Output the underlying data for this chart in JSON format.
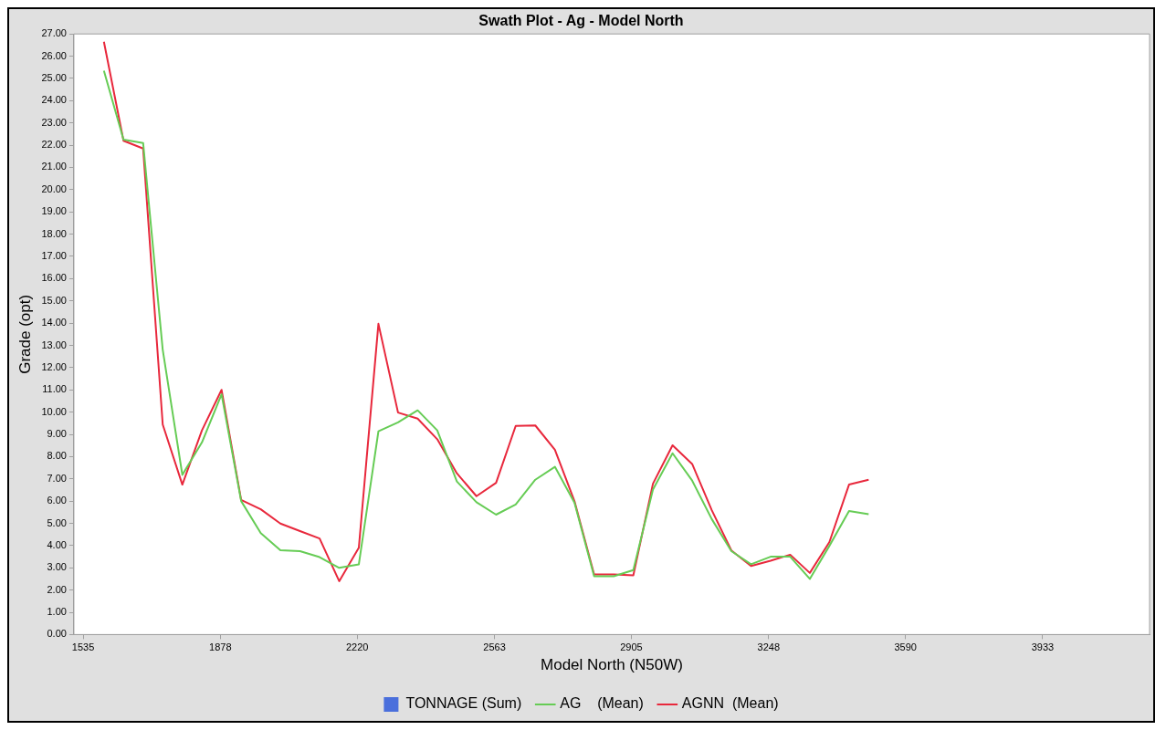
{
  "chart_data": {
    "type": "line",
    "title": "Swath Plot - Ag - Model North",
    "xlabel": "Model North (N50W)",
    "ylabel": "Grade (opt)",
    "x": [
      1587,
      1636,
      1685,
      1734,
      1783,
      1832,
      1881,
      1930,
      1979,
      2028,
      2077,
      2126,
      2175,
      2224,
      2273,
      2322,
      2371,
      2420,
      2469,
      2518,
      2567,
      2616,
      2665,
      2714,
      2763,
      2812,
      2861,
      2910,
      2959,
      3008,
      3057,
      3106,
      3155,
      3204,
      3253,
      3302,
      3351,
      3400,
      3449,
      3498
    ],
    "xlim": [
      1512,
      4200
    ],
    "xticks": [
      1535,
      1878,
      2220,
      2563,
      2905,
      3248,
      3590,
      3933
    ],
    "ylim": [
      0,
      27
    ],
    "yticks": [
      {
        "value": 0,
        "label": "0.00"
      },
      {
        "value": 1,
        "label": "1.00"
      },
      {
        "value": 2,
        "label": "2.00"
      },
      {
        "value": 3,
        "label": "3.00"
      },
      {
        "value": 4,
        "label": "4.00"
      },
      {
        "value": 5,
        "label": "5.00"
      },
      {
        "value": 6,
        "label": "6.00"
      },
      {
        "value": 7,
        "label": "7.00"
      },
      {
        "value": 8,
        "label": "8.00"
      },
      {
        "value": 9,
        "label": "9.00"
      },
      {
        "value": 10,
        "label": "10.00"
      },
      {
        "value": 11,
        "label": "11.00"
      },
      {
        "value": 12,
        "label": "12.00"
      },
      {
        "value": 13,
        "label": "13.00"
      },
      {
        "value": 14,
        "label": "14.00"
      },
      {
        "value": 15,
        "label": "15.00"
      },
      {
        "value": 16,
        "label": "16.00"
      },
      {
        "value": 17,
        "label": "17.00"
      },
      {
        "value": 18,
        "label": "18.00"
      },
      {
        "value": 19,
        "label": "19.00"
      },
      {
        "value": 20,
        "label": "20.00"
      },
      {
        "value": 21,
        "label": "21.00"
      },
      {
        "value": 22,
        "label": "22.00"
      },
      {
        "value": 23,
        "label": "23.00"
      },
      {
        "value": 24,
        "label": "24.00"
      },
      {
        "value": 25,
        "label": "25.00"
      },
      {
        "value": 26,
        "label": "26.00"
      },
      {
        "value": 27,
        "label": "27.00"
      }
    ],
    "grid": false,
    "legend": "bottom",
    "marker": "none",
    "line_style": "solid",
    "series": [
      {
        "name": "TONNAGE (Sum)",
        "type": "bar",
        "color": "#4a6fdc",
        "values": [
          null,
          null,
          null,
          null,
          null,
          null,
          null,
          null,
          null,
          null,
          null,
          null,
          null,
          null,
          null,
          null,
          null,
          null,
          null,
          null,
          null,
          null,
          null,
          null,
          null,
          null,
          null,
          null,
          null,
          null,
          null,
          null,
          null,
          null,
          null,
          null,
          null,
          null,
          null,
          null
        ]
      },
      {
        "name": "AG    (Mean)",
        "color": "#66cc55",
        "values": [
          25.35,
          22.25,
          22.1,
          12.8,
          7.18,
          8.64,
          10.8,
          6.0,
          4.56,
          3.79,
          3.75,
          3.48,
          3.0,
          3.15,
          9.14,
          9.54,
          10.08,
          9.18,
          6.88,
          5.95,
          5.39,
          5.85,
          6.96,
          7.54,
          5.92,
          2.62,
          2.62,
          2.9,
          6.52,
          8.15,
          6.92,
          5.19,
          3.75,
          3.16,
          3.5,
          3.5,
          2.5,
          3.99,
          5.55,
          5.41
        ]
      },
      {
        "name": "AGNN  (Mean)",
        "color": "#e8283c",
        "values": [
          26.65,
          22.2,
          21.85,
          9.44,
          6.74,
          9.18,
          11.0,
          6.05,
          5.63,
          4.99,
          4.65,
          4.32,
          2.4,
          3.9,
          13.97,
          9.98,
          9.71,
          8.78,
          7.25,
          6.22,
          6.82,
          9.38,
          9.4,
          8.31,
          5.99,
          2.7,
          2.7,
          2.66,
          6.78,
          8.51,
          7.67,
          5.59,
          3.78,
          3.08,
          3.32,
          3.59,
          2.77,
          4.16,
          6.74,
          6.96
        ]
      }
    ]
  }
}
